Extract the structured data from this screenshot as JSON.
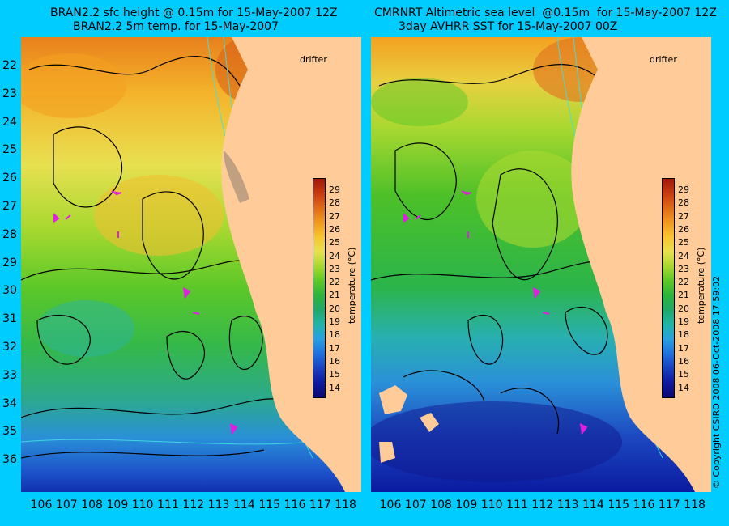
{
  "left_panel": {
    "title_line1": "BRAN2.2 sfc height @ 0.15m for 15-May-2007 12Z",
    "title_line2": "BRAN2.2 5m temp. for 15-May-2007",
    "drifter_label": "drifter"
  },
  "right_panel": {
    "title_line1": "CMRNRT Altimetric sea level  @0.15m  for 15-May-2007 12Z",
    "title_line2": "3day AVHRR SST for 15-May-2007 00Z",
    "drifter_label": "drifter"
  },
  "colorbar": {
    "label": "temperature (°C)",
    "ticks": [
      "29",
      "28",
      "27",
      "26",
      "25",
      "24",
      "23",
      "22",
      "21",
      "20",
      "19",
      "18",
      "17",
      "16",
      "15",
      "14"
    ],
    "colors": [
      "#a01808",
      "#c83a10",
      "#e06a18",
      "#f09a20",
      "#f8c430",
      "#e8e050",
      "#a8d830",
      "#5cc828",
      "#2cb43c",
      "#20a868",
      "#20b4a8",
      "#28a0e0",
      "#2070e0",
      "#1a40c0",
      "#1018a0",
      "#0a0a70"
    ]
  },
  "y_axis_ticks": [
    "22",
    "23",
    "24",
    "25",
    "26",
    "27",
    "28",
    "29",
    "30",
    "31",
    "32",
    "33",
    "34",
    "35",
    "36"
  ],
  "x_axis_ticks": [
    "106",
    "107",
    "108",
    "109",
    "110",
    "111",
    "112",
    "113",
    "114",
    "115",
    "116",
    "117",
    "118"
  ],
  "copyright": "© Copyright CSIRO 2008    06-Oct-2008 17:59:02",
  "colors": {
    "background": "#00ccff",
    "land": "#ffcc99",
    "drifter": "#e020e0",
    "contour": "#000000",
    "bathymetry": "#40e0e0"
  }
}
